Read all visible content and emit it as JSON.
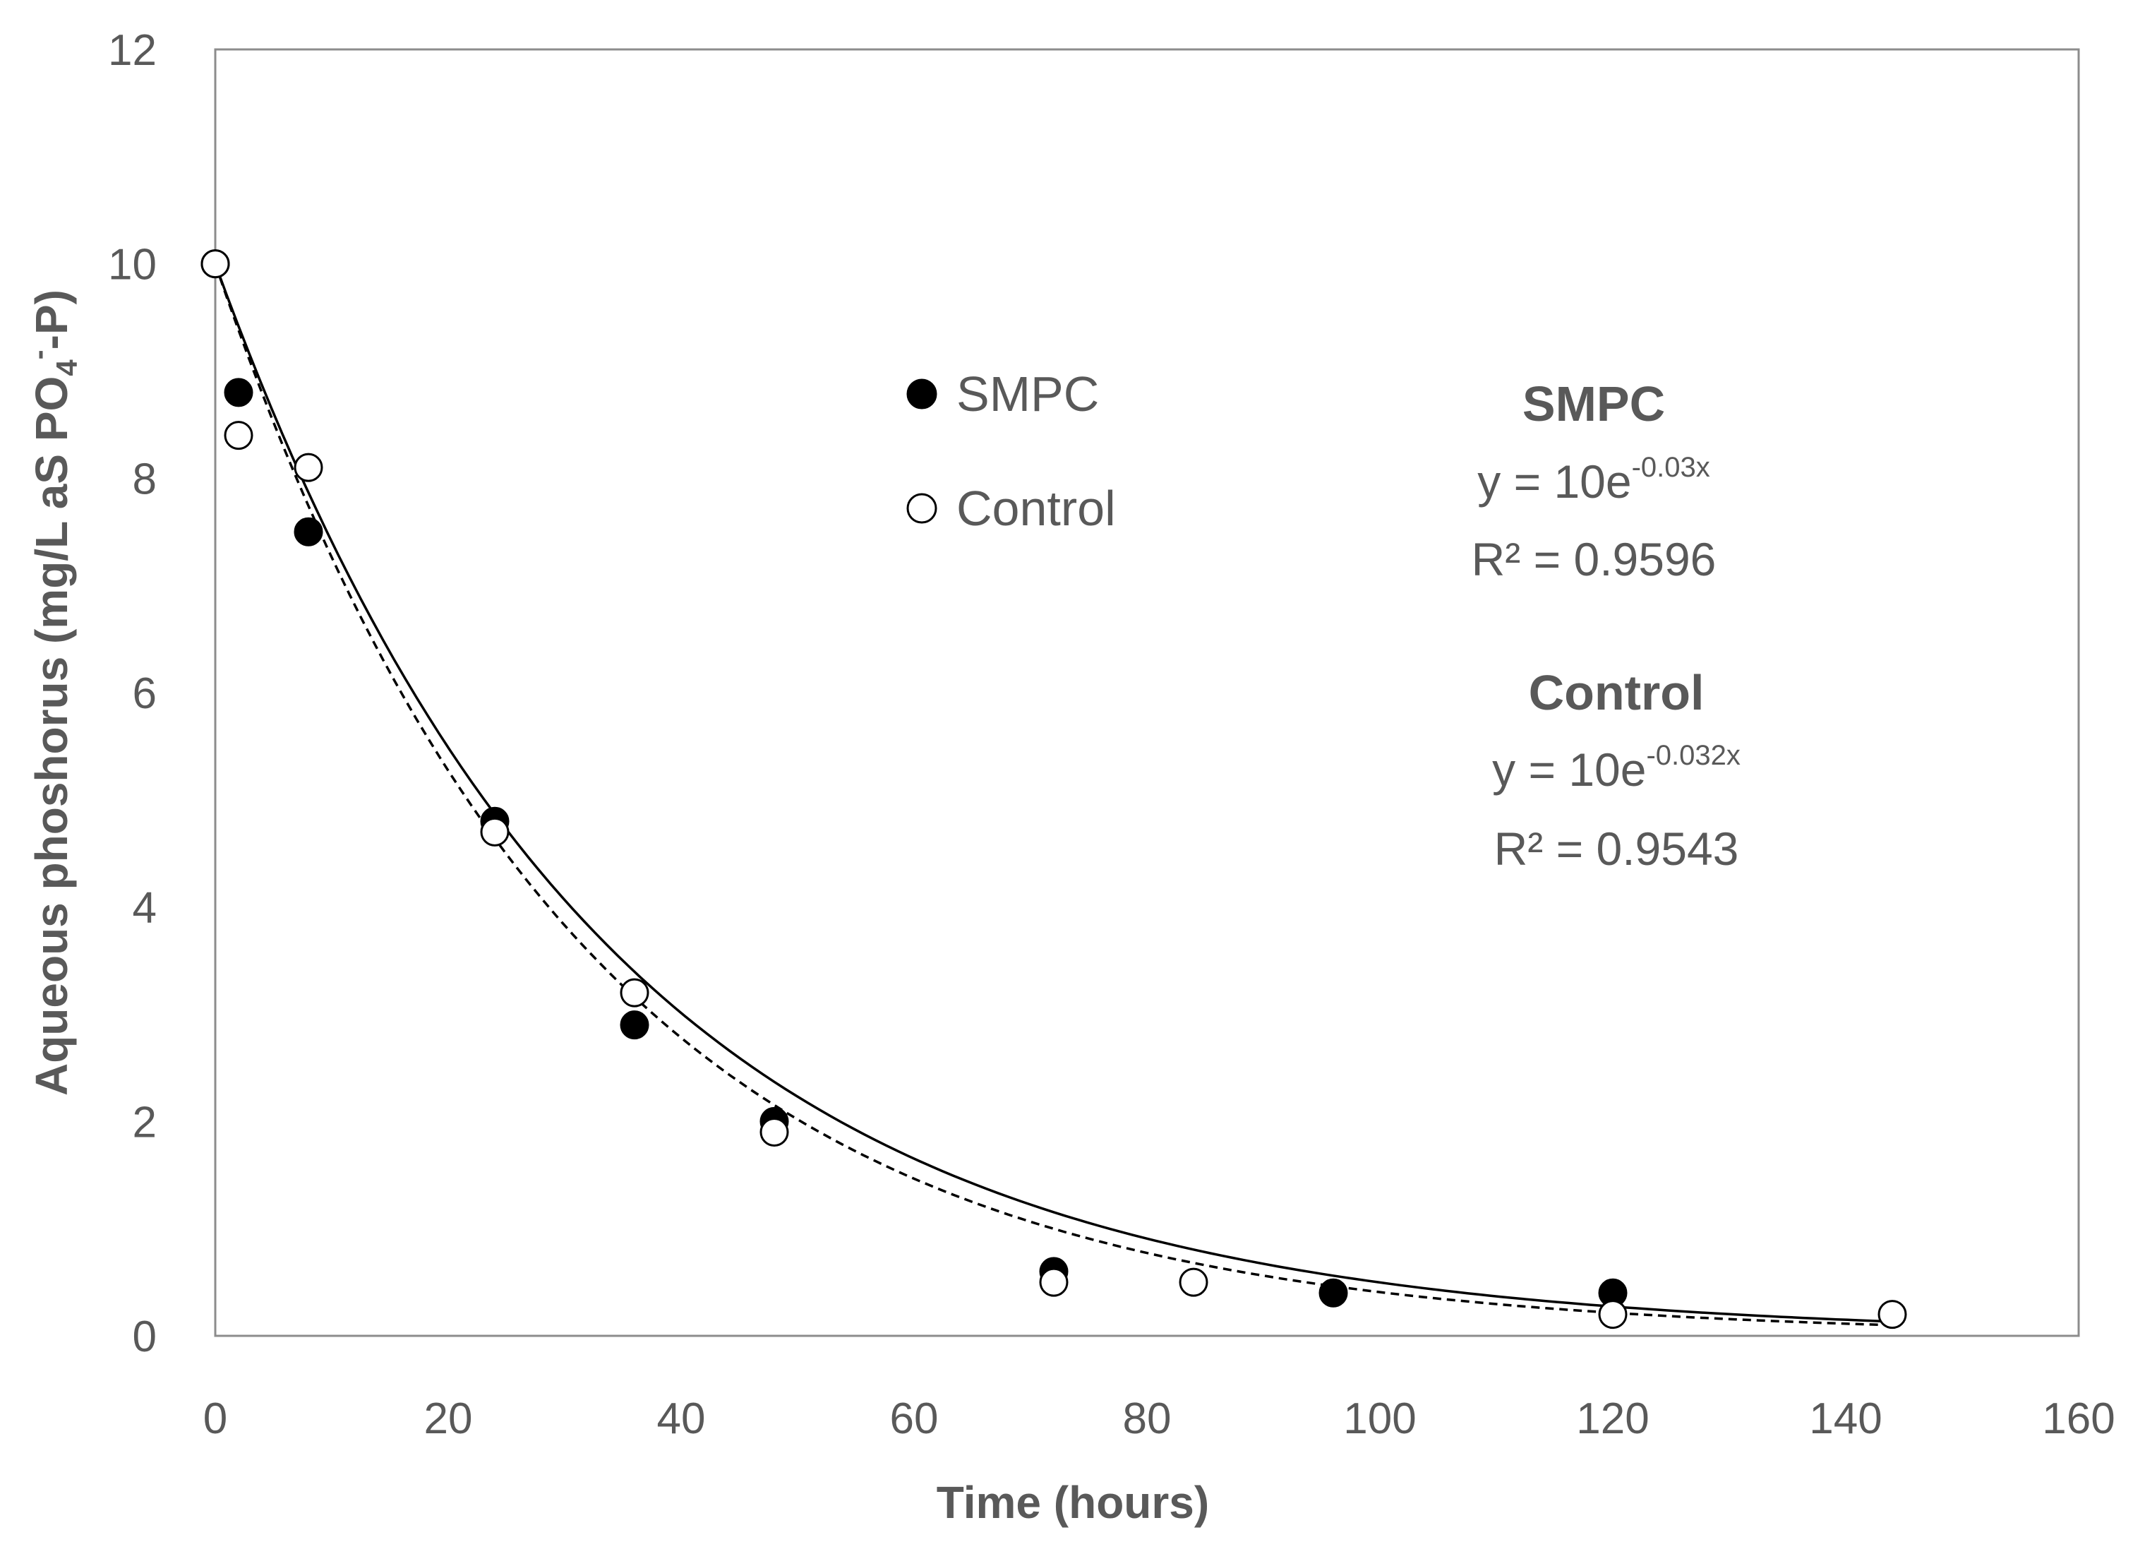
{
  "chart_data": {
    "type": "scatter",
    "title": "",
    "xlabel": "Time (hours)",
    "ylabel_main": "Aqueous phoshorus (mg/L aS PO",
    "ylabel_sub": "4",
    "ylabel_sup": "-",
    "ylabel_tail": "-P)",
    "xlim": [
      0,
      160
    ],
    "ylim": [
      0,
      12
    ],
    "x_ticks": [
      "0",
      "20",
      "40",
      "60",
      "80",
      "100",
      "120",
      "140",
      "160"
    ],
    "y_ticks": [
      "0",
      "2",
      "4",
      "6",
      "8",
      "10",
      "12"
    ],
    "grid": false,
    "legend_position": "upper-center",
    "series": [
      {
        "name": "SMPC",
        "marker": "filled-circle",
        "x": [
          0,
          2,
          8,
          24,
          36,
          48,
          72,
          96,
          120
        ],
        "y": [
          10,
          8.8,
          7.5,
          4.8,
          2.9,
          2.0,
          0.6,
          0.4,
          0.4
        ],
        "fit": {
          "a": 10,
          "b": -0.03,
          "line_style": "solid",
          "x_range": [
            0,
            144
          ]
        }
      },
      {
        "name": "Control",
        "marker": "open-circle",
        "x": [
          0,
          2,
          8,
          24,
          36,
          48,
          72,
          84,
          120,
          144
        ],
        "y": [
          10,
          8.4,
          8.1,
          4.7,
          3.2,
          1.9,
          0.5,
          0.5,
          0.2,
          0.2
        ],
        "fit": {
          "a": 10,
          "b": -0.032,
          "line_style": "dashed",
          "x_range": [
            0,
            144
          ]
        }
      }
    ],
    "annotations": [
      {
        "series": "SMPC",
        "title": "SMPC",
        "eq_prefix": "y = 10e",
        "eq_exp": "-0.03x",
        "r2": "R² = 0.9596"
      },
      {
        "series": "Control",
        "title": "Control",
        "eq_prefix": "y = 10e",
        "eq_exp": "-0.032x",
        "r2": "R² = 0.9543"
      }
    ]
  },
  "colors": {
    "axis": "#8c8c8c",
    "text": "#595959",
    "marker": "#000000",
    "marker_open_fill": "#ffffff",
    "line": "#000000"
  }
}
